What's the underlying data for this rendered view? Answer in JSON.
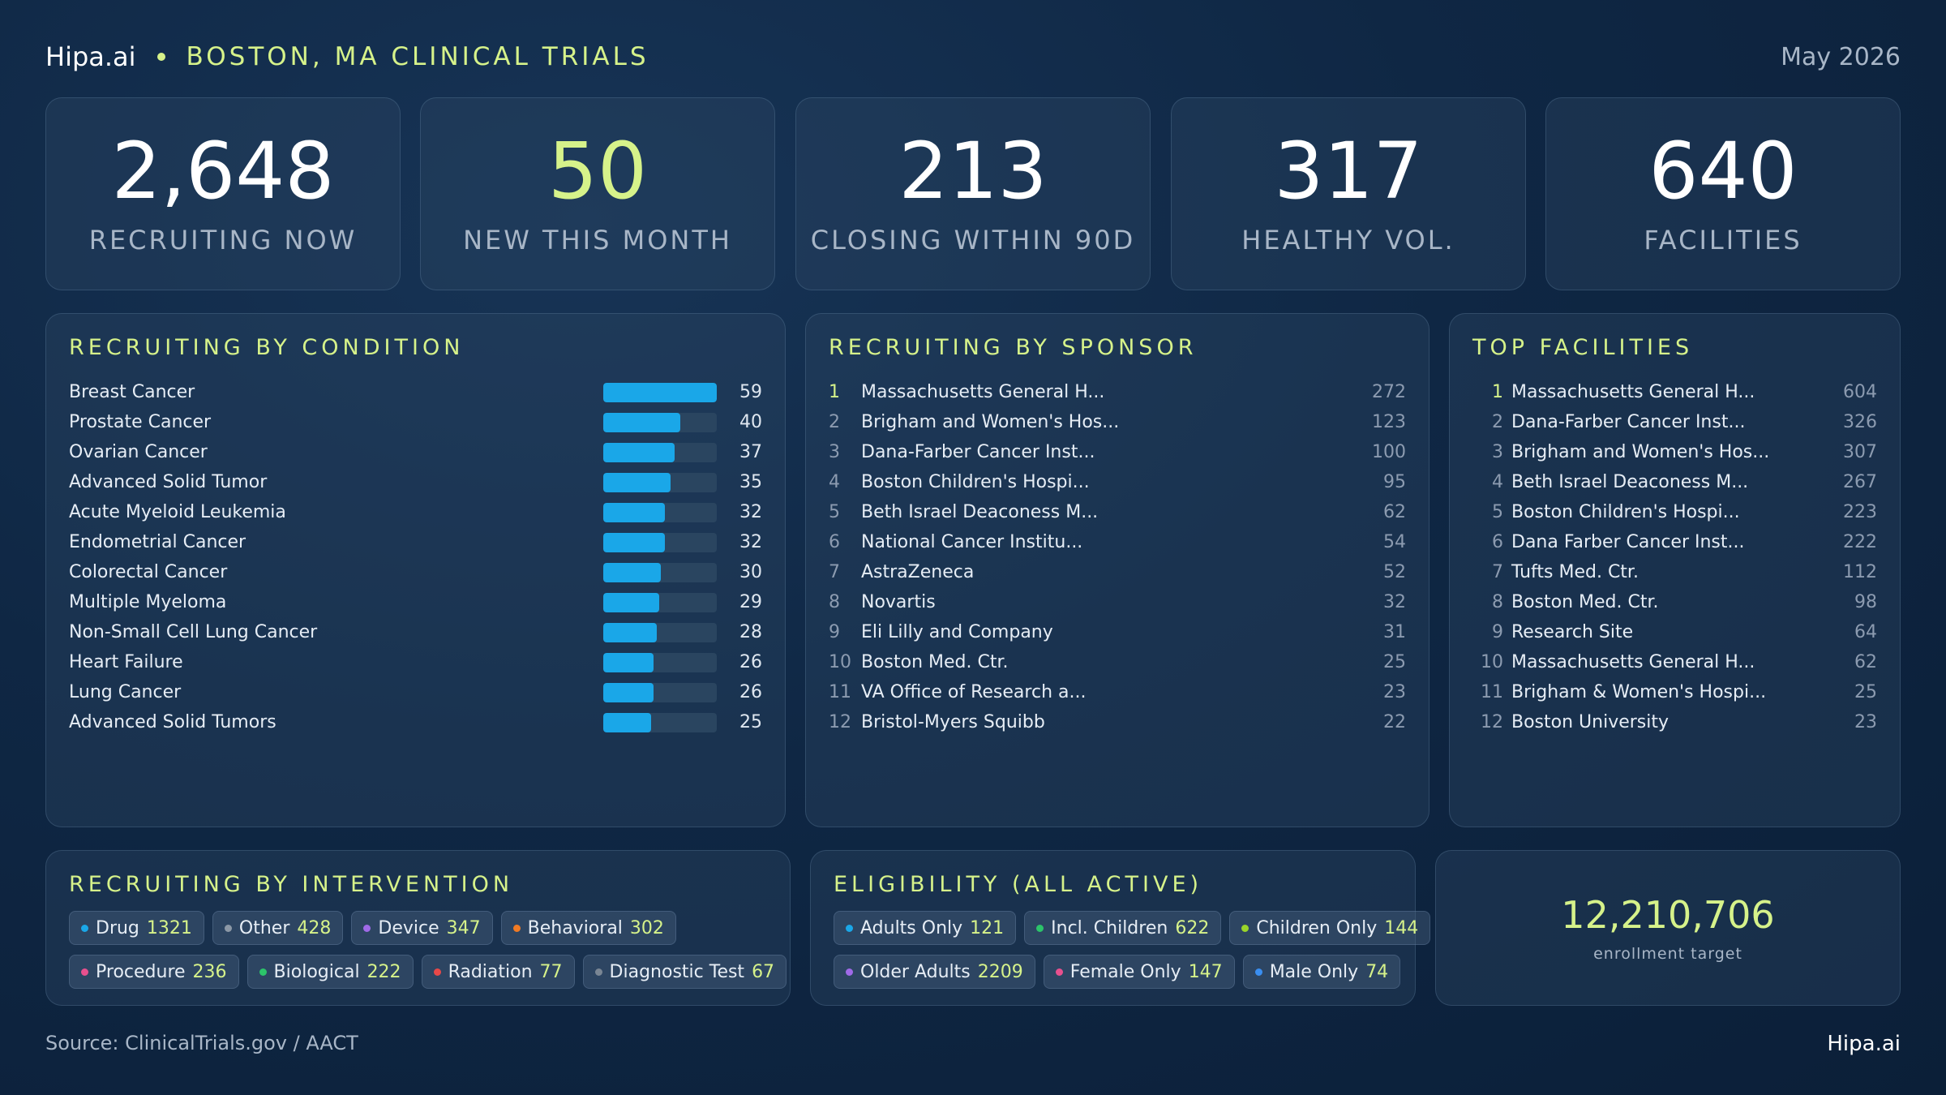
{
  "header": {
    "brand": "Hipa.ai",
    "region": "BOSTON, MA CLINICAL TRIALS",
    "date": "May 2026"
  },
  "kpis": [
    {
      "value": "2,648",
      "label": "RECRUITING NOW"
    },
    {
      "value": "50",
      "label": "NEW THIS MONTH"
    },
    {
      "value": "213",
      "label": "CLOSING WITHIN 90D"
    },
    {
      "value": "317",
      "label": "HEALTHY VOL."
    },
    {
      "value": "640",
      "label": "FACILITIES"
    }
  ],
  "by_condition": {
    "title": "RECRUITING BY CONDITION",
    "max": 59,
    "items": [
      {
        "name": "Breast Cancer",
        "value": "59"
      },
      {
        "name": "Prostate Cancer",
        "value": "40"
      },
      {
        "name": "Ovarian Cancer",
        "value": "37"
      },
      {
        "name": "Advanced Solid Tumor",
        "value": "35"
      },
      {
        "name": "Acute Myeloid Leukemia",
        "value": "32"
      },
      {
        "name": "Endometrial Cancer",
        "value": "32"
      },
      {
        "name": "Colorectal Cancer",
        "value": "30"
      },
      {
        "name": "Multiple Myeloma",
        "value": "29"
      },
      {
        "name": "Non-Small Cell Lung Cancer",
        "value": "28"
      },
      {
        "name": "Heart Failure",
        "value": "26"
      },
      {
        "name": "Lung Cancer",
        "value": "26"
      },
      {
        "name": "Advanced Solid Tumors",
        "value": "25"
      }
    ]
  },
  "by_sponsor": {
    "title": "RECRUITING BY SPONSOR",
    "items": [
      {
        "rank": "1",
        "name": "Massachusetts General H...",
        "value": "272"
      },
      {
        "rank": "2",
        "name": "Brigham and Women's Hos...",
        "value": "123"
      },
      {
        "rank": "3",
        "name": "Dana-Farber Cancer Inst...",
        "value": "100"
      },
      {
        "rank": "4",
        "name": "Boston Children's Hospi...",
        "value": "95"
      },
      {
        "rank": "5",
        "name": "Beth Israel Deaconess M...",
        "value": "62"
      },
      {
        "rank": "6",
        "name": "National Cancer Institu...",
        "value": "54"
      },
      {
        "rank": "7",
        "name": "AstraZeneca",
        "value": "52"
      },
      {
        "rank": "8",
        "name": "Novartis",
        "value": "32"
      },
      {
        "rank": "9",
        "name": "Eli Lilly and Company",
        "value": "31"
      },
      {
        "rank": "10",
        "name": "Boston Med. Ctr.",
        "value": "25"
      },
      {
        "rank": "11",
        "name": "VA Office of Research a...",
        "value": "23"
      },
      {
        "rank": "12",
        "name": "Bristol-Myers Squibb",
        "value": "22"
      }
    ]
  },
  "top_facilities": {
    "title": "TOP FACILITIES",
    "items": [
      {
        "rank": "1",
        "name": "Massachusetts General H...",
        "value": "604"
      },
      {
        "rank": "2",
        "name": "Dana-Farber Cancer Inst...",
        "value": "326"
      },
      {
        "rank": "3",
        "name": "Brigham and Women's Hos...",
        "value": "307"
      },
      {
        "rank": "4",
        "name": "Beth Israel Deaconess M...",
        "value": "267"
      },
      {
        "rank": "5",
        "name": "Boston Children's Hospi...",
        "value": "223"
      },
      {
        "rank": "6",
        "name": "Dana Farber Cancer Inst...",
        "value": "222"
      },
      {
        "rank": "7",
        "name": "Tufts Med. Ctr.",
        "value": "112"
      },
      {
        "rank": "8",
        "name": "Boston Med. Ctr.",
        "value": "98"
      },
      {
        "rank": "9",
        "name": "Research Site",
        "value": "64"
      },
      {
        "rank": "10",
        "name": "Massachusetts General H...",
        "value": "62"
      },
      {
        "rank": "11",
        "name": "Brigham & Women's Hospi...",
        "value": "25"
      },
      {
        "rank": "12",
        "name": "Boston University",
        "value": "23"
      }
    ]
  },
  "by_intervention": {
    "title": "RECRUITING BY INTERVENTION",
    "chips": [
      {
        "label": "Drug",
        "value": "1321",
        "color": "#1aa7e8"
      },
      {
        "label": "Other",
        "value": "428",
        "color": "#8c98a6"
      },
      {
        "label": "Device",
        "value": "347",
        "color": "#a06ae8"
      },
      {
        "label": "Behavioral",
        "value": "302",
        "color": "#f07a24"
      },
      {
        "label": "Procedure",
        "value": "236",
        "color": "#e8508e"
      },
      {
        "label": "Biological",
        "value": "222",
        "color": "#2cc46a"
      },
      {
        "label": "Radiation",
        "value": "77",
        "color": "#e84848"
      },
      {
        "label": "Diagnostic Test",
        "value": "67",
        "color": "#7a8694"
      }
    ]
  },
  "eligibility": {
    "title": "ELIGIBILITY (ALL ACTIVE)",
    "chips": [
      {
        "label": "Adults Only",
        "value": "121",
        "color": "#1aa7e8"
      },
      {
        "label": "Incl. Children",
        "value": "622",
        "color": "#2cc46a"
      },
      {
        "label": "Children Only",
        "value": "144",
        "color": "#9ad42a"
      },
      {
        "label": "Older Adults",
        "value": "2209",
        "color": "#a06ae8"
      },
      {
        "label": "Female Only",
        "value": "147",
        "color": "#e8508e"
      },
      {
        "label": "Male Only",
        "value": "74",
        "color": "#3a8ef0"
      }
    ]
  },
  "enrollment": {
    "value": "12,210,706",
    "label": "enrollment target"
  },
  "footer": {
    "source": "Source: ClinicalTrials.gov / AACT",
    "brand": "Hipa.ai"
  }
}
